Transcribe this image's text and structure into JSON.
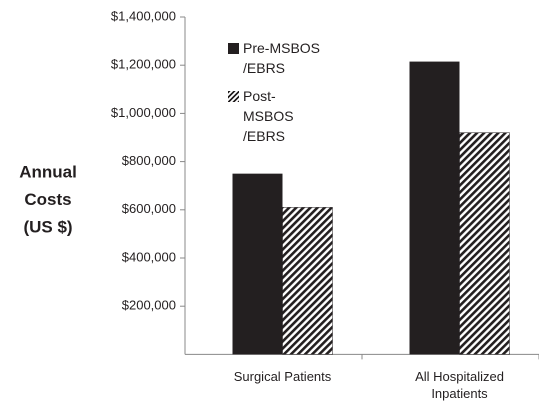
{
  "chart_data": {
    "type": "bar",
    "ylabel": [
      "Annual",
      "Costs",
      "(US $)"
    ],
    "categories": [
      "Surgical Patients",
      "All Hospitalized Inpatients"
    ],
    "series": [
      {
        "name": "Pre-MSBOS /EBRS",
        "color": "#231f20",
        "pattern": "solid",
        "values": [
          750000,
          1215000
        ]
      },
      {
        "name": "Post-MSBOS /EBRS",
        "color": "#231f20",
        "pattern": "hatch",
        "values": [
          610000,
          920000
        ]
      }
    ],
    "ylim": [
      0,
      1400000
    ],
    "yticks": [
      {
        "value": 200000,
        "label": "$200,000"
      },
      {
        "value": 400000,
        "label": "$400,000"
      },
      {
        "value": 600000,
        "label": "$600,000"
      },
      {
        "value": 800000,
        "label": "$800,000"
      },
      {
        "value": 1000000,
        "label": "$1,000,000"
      },
      {
        "value": 1200000,
        "label": "$1,200,000"
      },
      {
        "value": 1400000,
        "label": "$1,400,000"
      }
    ],
    "legend": "top-left"
  }
}
